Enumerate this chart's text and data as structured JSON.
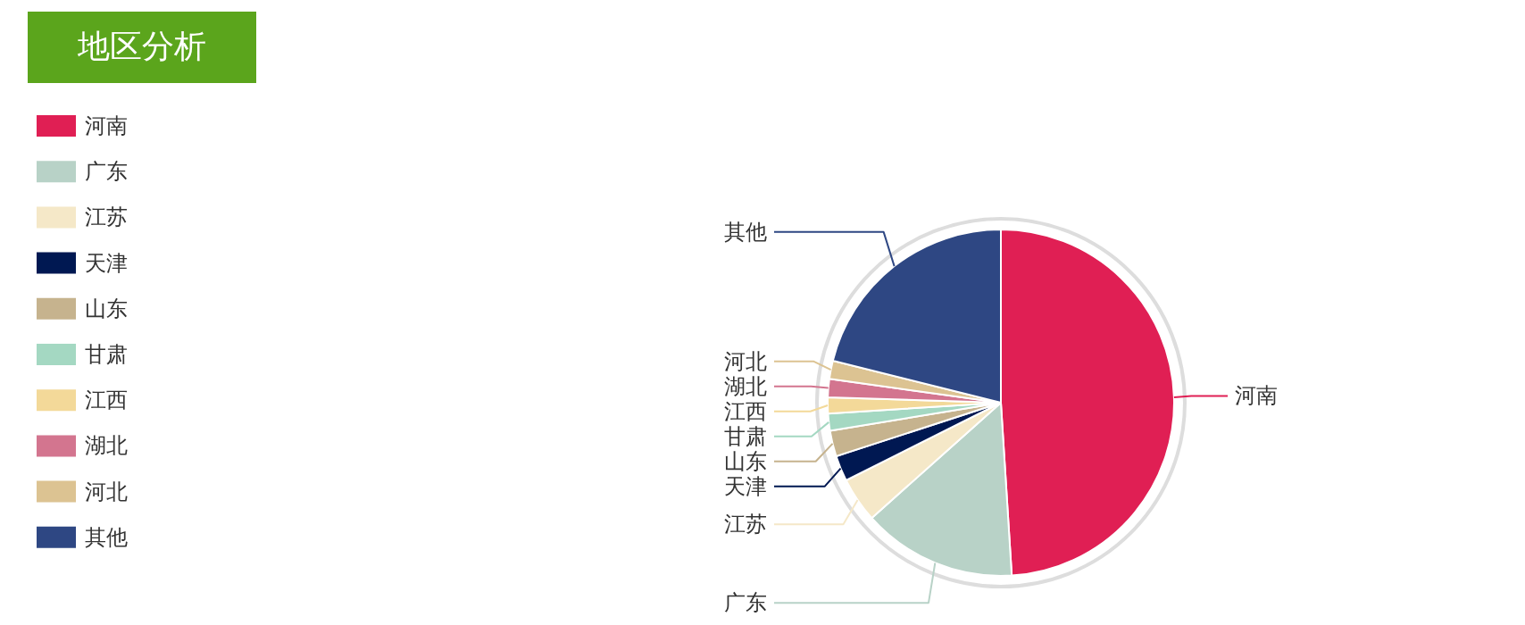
{
  "chart_data": {
    "type": "pie",
    "title": "地区分析",
    "legend": "top left",
    "categories": [
      "河南",
      "广东",
      "江苏",
      "天津",
      "山东",
      "甘肃",
      "江西",
      "湖北",
      "河北",
      "其他"
    ],
    "values": [
      49,
      14.4,
      4.2,
      2.4,
      2.4,
      1.6,
      1.5,
      1.7,
      1.7,
      21.1
    ],
    "colors": [
      "#e01f54",
      "#b8d2c7",
      "#f5e8c8",
      "#001852",
      "#c6b38e",
      "#a4d8c2",
      "#f3d999",
      "#d3758f",
      "#dcc392",
      "#2e4783"
    ]
  }
}
